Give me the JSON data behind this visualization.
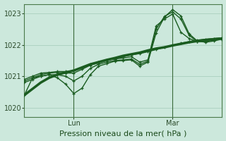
{
  "bg_color": "#cce8dc",
  "grid_color": "#aacfbf",
  "line_color": "#1a5c20",
  "marker_color": "#1a5c20",
  "xlabel": "Pression niveau de la mer( hPa )",
  "ylim": [
    1019.7,
    1023.3
  ],
  "yticks": [
    1020,
    1021,
    1022,
    1023
  ],
  "xlim": [
    0,
    96
  ],
  "day_labels": [
    [
      "Lun",
      24
    ],
    [
      "Mar",
      72
    ]
  ],
  "day_lines": [
    24,
    72
  ],
  "series": [
    {
      "x": [
        0,
        4,
        8,
        12,
        16,
        20,
        24,
        28,
        32,
        36,
        40,
        44,
        48,
        52,
        56,
        60,
        64,
        68,
        72,
        76,
        80,
        84,
        88,
        92,
        96
      ],
      "y": [
        1020.4,
        1020.6,
        1020.8,
        1020.95,
        1021.05,
        1021.12,
        1021.18,
        1021.28,
        1021.38,
        1021.45,
        1021.52,
        1021.58,
        1021.65,
        1021.7,
        1021.75,
        1021.82,
        1021.88,
        1021.92,
        1021.98,
        1022.03,
        1022.08,
        1022.12,
        1022.15,
        1022.18,
        1022.2
      ],
      "lw": 2.5,
      "marker": false
    },
    {
      "x": [
        0,
        4,
        8,
        12,
        16,
        20,
        24,
        28,
        32,
        36,
        40,
        44,
        48,
        52,
        56,
        60,
        64,
        68,
        72,
        76,
        80,
        84,
        88,
        92,
        96
      ],
      "y": [
        1020.9,
        1021.0,
        1021.1,
        1021.12,
        1021.15,
        1021.15,
        1021.18,
        1021.28,
        1021.38,
        1021.45,
        1021.52,
        1021.55,
        1021.62,
        1021.68,
        1021.72,
        1021.78,
        1021.85,
        1021.92,
        1021.98,
        1022.05,
        1022.1,
        1022.15,
        1022.18,
        1022.2,
        1022.22
      ],
      "lw": 1.0,
      "marker": true
    },
    {
      "x": [
        0,
        4,
        8,
        12,
        16,
        20,
        24,
        28,
        32,
        36,
        40,
        44,
        48,
        52,
        56,
        60,
        64,
        68,
        72,
        76,
        80,
        84,
        88,
        92,
        96
      ],
      "y": [
        1020.85,
        1020.95,
        1021.05,
        1021.1,
        1021.12,
        1021.1,
        1021.1,
        1021.22,
        1021.35,
        1021.42,
        1021.5,
        1021.55,
        1021.58,
        1021.62,
        1021.45,
        1021.52,
        1022.6,
        1022.82,
        1022.98,
        1022.4,
        1022.2,
        1022.1,
        1022.12,
        1022.18,
        1022.22
      ],
      "lw": 1.0,
      "marker": true
    },
    {
      "x": [
        0,
        4,
        8,
        12,
        16,
        20,
        24,
        28,
        32,
        36,
        40,
        44,
        48,
        52,
        56,
        60,
        64,
        68,
        72,
        76,
        80,
        84,
        88,
        92,
        96
      ],
      "y": [
        1020.8,
        1020.9,
        1021.0,
        1021.05,
        1021.05,
        1021.0,
        1020.85,
        1021.0,
        1021.25,
        1021.38,
        1021.45,
        1021.5,
        1021.52,
        1021.55,
        1021.38,
        1021.48,
        1022.5,
        1022.9,
        1023.05,
        1022.82,
        1022.3,
        1022.1,
        1022.1,
        1022.15,
        1022.2
      ],
      "lw": 1.0,
      "marker": true
    },
    {
      "x": [
        0,
        4,
        8,
        12,
        16,
        20,
        24,
        28,
        32,
        36,
        40,
        44,
        48,
        52,
        56,
        60,
        64,
        68,
        72,
        76,
        80,
        84,
        88,
        92,
        96
      ],
      "y": [
        1020.4,
        1020.95,
        1021.0,
        1021.05,
        1020.95,
        1020.75,
        1020.45,
        1020.62,
        1021.05,
        1021.32,
        1021.4,
        1021.48,
        1021.5,
        1021.52,
        1021.32,
        1021.45,
        1022.38,
        1022.88,
        1023.12,
        1022.92,
        1022.35,
        1022.12,
        1022.08,
        1022.12,
        1022.18
      ],
      "lw": 1.0,
      "marker": true
    }
  ]
}
